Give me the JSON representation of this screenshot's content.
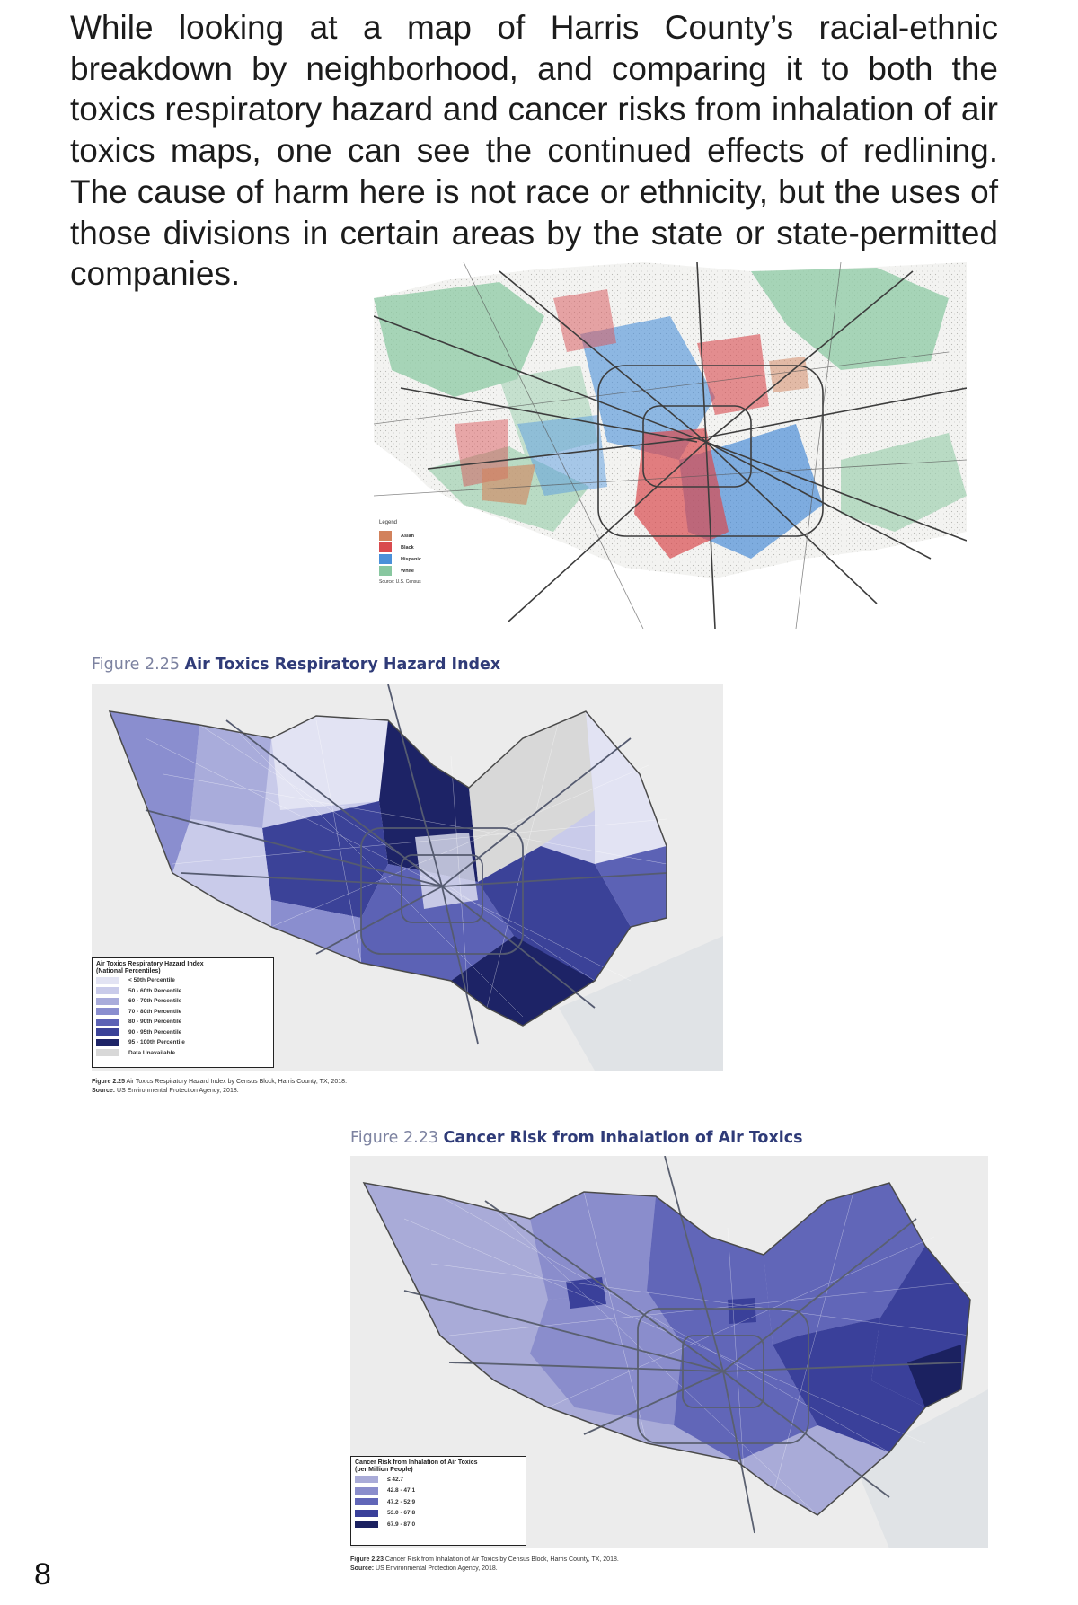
{
  "intro_text": "While looking at a map of Harris County’s racial-ethnic breakdown by neighborhood, and comparing it to both the toxics respiratory hazard and cancer risks from inhalation of air toxics maps, one can see the continued effects of redlining. The cause of harm here is not race or ethnicity, but the uses of those divisions in certain areas by the state or state-permitted companies.",
  "race_map": {
    "legend_title": "Legend",
    "legend": [
      {
        "label": "Asian",
        "color": "#d2825c"
      },
      {
        "label": "Black",
        "color": "#d94a4e"
      },
      {
        "label": "Hispanic",
        "color": "#4a90d9"
      },
      {
        "label": "White",
        "color": "#88c7a0"
      }
    ],
    "source": "Source: U.S. Census"
  },
  "figure_225": {
    "title_number": "Figure 2.25",
    "title_name": "Air Toxics Respiratory Hazard Index",
    "legend_title": "Air Toxics Respiratory Hazard Index (National Percentiles)",
    "legend": [
      {
        "label": "< 50th Percentile",
        "color": "#e2e3f3"
      },
      {
        "label": "50 - 60th Percentile",
        "color": "#c9cbea"
      },
      {
        "label": "60 - 70th Percentile",
        "color": "#a9acdb"
      },
      {
        "label": "70 - 80th Percentile",
        "color": "#8a8ecf"
      },
      {
        "label": "80 - 90th Percentile",
        "color": "#5c62b5"
      },
      {
        "label": "90 - 95th Percentile",
        "color": "#3b4298"
      },
      {
        "label": "95 - 100th Percentile",
        "color": "#1d2366"
      },
      {
        "label": "Data Unavailable",
        "color": "#d8d8d8"
      }
    ],
    "caption_line1_label": "Figure 2.25",
    "caption_line1_text": "Air Toxics Respiratory Hazard Index by Census Block, Harris County, TX, 2018.",
    "caption_line2_label": "Source:",
    "caption_line2_text": "US Environmental Protection Agency, 2018."
  },
  "figure_223": {
    "title_number": "Figure 2.23",
    "title_name": "Cancer Risk from Inhalation of Air Toxics",
    "legend_title": "Cancer Risk from Inhalation of Air Toxics (per Million People)",
    "legend": [
      {
        "label": "≤ 42.7",
        "color": "#a9abd8"
      },
      {
        "label": "42.8 - 47.1",
        "color": "#8a8dcc"
      },
      {
        "label": "47.2 - 52.9",
        "color": "#6166b8"
      },
      {
        "label": "53.0 - 67.8",
        "color": "#3a409a"
      },
      {
        "label": "67.9 - 87.0",
        "color": "#1b2160"
      }
    ],
    "caption_line1_label": "Figure 2.23",
    "caption_line1_text": "Cancer Risk from Inhalation of Air Toxics by Census Block, Harris County, TX, 2018.",
    "caption_line2_label": "Source:",
    "caption_line2_text": "US Environmental Protection Agency, 2018."
  },
  "page_number": "8"
}
